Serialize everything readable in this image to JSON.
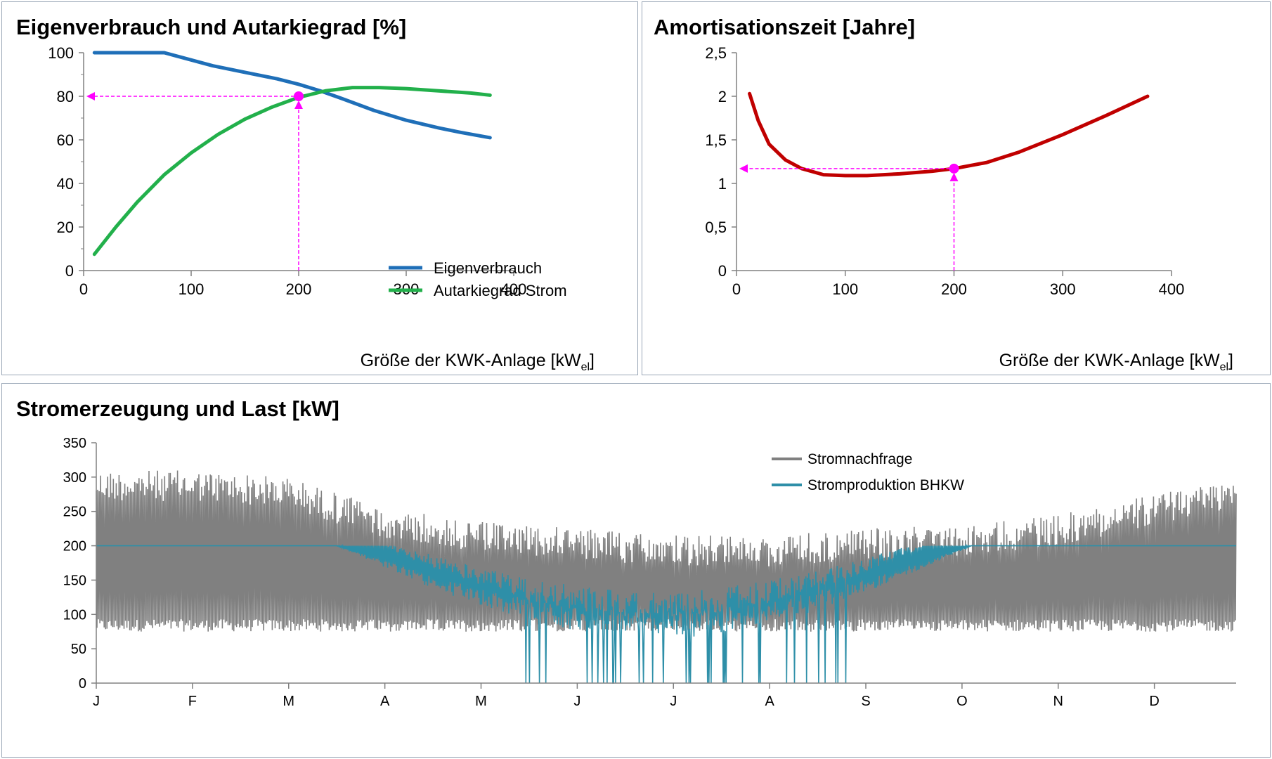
{
  "charts": [
    {
      "title": "Eigenverbrauch und Autarkiegrad [%]",
      "xlabel": "Größe der KWK-Anlage [kW",
      "xlabel_sub": "el",
      "xlabel_close": "]",
      "legend": [
        "Eigenverbrauch",
        "Autarkiegrad Strom"
      ]
    },
    {
      "title": "Amortisationszeit [Jahre]",
      "xlabel": "Größe der KWK-Anlage [kW",
      "xlabel_sub": "el",
      "xlabel_close": "]"
    },
    {
      "title": "Stromerzeugung und Last [kW]",
      "legend": [
        "Stromnachfrage",
        "Stromproduktion BHKW"
      ]
    }
  ],
  "chart_data": [
    {
      "type": "line",
      "xlim": [
        0,
        400
      ],
      "ylim": [
        0,
        100
      ],
      "xticks": [
        0,
        100,
        200,
        300,
        400
      ],
      "yticks": [
        0,
        20,
        40,
        60,
        80,
        100
      ],
      "grid": false,
      "legend_position": "bottom-right",
      "series": [
        {
          "name": "Eigenverbrauch",
          "color": "#1f6fb8",
          "x": [
            10,
            75,
            90,
            120,
            150,
            180,
            200,
            220,
            240,
            270,
            300,
            330,
            350,
            378
          ],
          "y": [
            100,
            100,
            98,
            94,
            91,
            88,
            85.5,
            82.5,
            79,
            73.5,
            69,
            65.5,
            63.5,
            61
          ]
        },
        {
          "name": "Autarkiegrad Strom",
          "color": "#22b04b",
          "x": [
            10,
            30,
            50,
            75,
            100,
            125,
            150,
            175,
            200,
            225,
            250,
            275,
            300,
            330,
            360,
            378
          ],
          "y": [
            7.5,
            20,
            31.5,
            44,
            54,
            62.5,
            69.5,
            75,
            79.5,
            82.5,
            84,
            84,
            83.5,
            82.5,
            81.5,
            80.5
          ]
        }
      ],
      "marker": {
        "x": 200,
        "y": 80,
        "color": "#ff00ff"
      }
    },
    {
      "type": "line",
      "xlim": [
        0,
        400
      ],
      "ylim": [
        0,
        2.5
      ],
      "xticks": [
        0,
        100,
        200,
        300,
        400
      ],
      "yticks": [
        0,
        0.5,
        1,
        1.5,
        2,
        2.5
      ],
      "ytick_labels": [
        "0",
        "0,5",
        "1",
        "1,5",
        "2",
        "2,5"
      ],
      "grid": false,
      "series": [
        {
          "color": "#c00000",
          "x": [
            12,
            20,
            30,
            45,
            60,
            80,
            100,
            120,
            150,
            180,
            200,
            230,
            260,
            300,
            340,
            378
          ],
          "y": [
            2.03,
            1.72,
            1.45,
            1.27,
            1.17,
            1.1,
            1.09,
            1.09,
            1.11,
            1.14,
            1.17,
            1.24,
            1.36,
            1.56,
            1.78,
            2.0
          ]
        }
      ],
      "marker": {
        "x": 200,
        "y": 1.17,
        "color": "#ff00ff"
      }
    },
    {
      "type": "line",
      "ylim": [
        0,
        350
      ],
      "yticks": [
        0,
        50,
        100,
        150,
        200,
        250,
        300,
        350
      ],
      "xtick_labels": [
        "J",
        "F",
        "M",
        "A",
        "M",
        "J",
        "J",
        "A",
        "S",
        "O",
        "N",
        "D"
      ],
      "grid": false,
      "legend_position": "top-right",
      "series": [
        {
          "name": "Stromnachfrage",
          "color": "#808080",
          "envelope_months": [
            0,
            1,
            2,
            3,
            4,
            5,
            6,
            7,
            8,
            9,
            10,
            11,
            12
          ],
          "low": [
            75,
            75,
            75,
            75,
            75,
            75,
            75,
            75,
            75,
            75,
            75,
            75,
            75
          ],
          "peak": [
            310,
            310,
            300,
            255,
            235,
            225,
            215,
            215,
            225,
            230,
            245,
            275,
            305
          ]
        },
        {
          "name": "Stromproduktion BHKW",
          "color": "#2e8fa8",
          "max": 200
        }
      ]
    }
  ]
}
